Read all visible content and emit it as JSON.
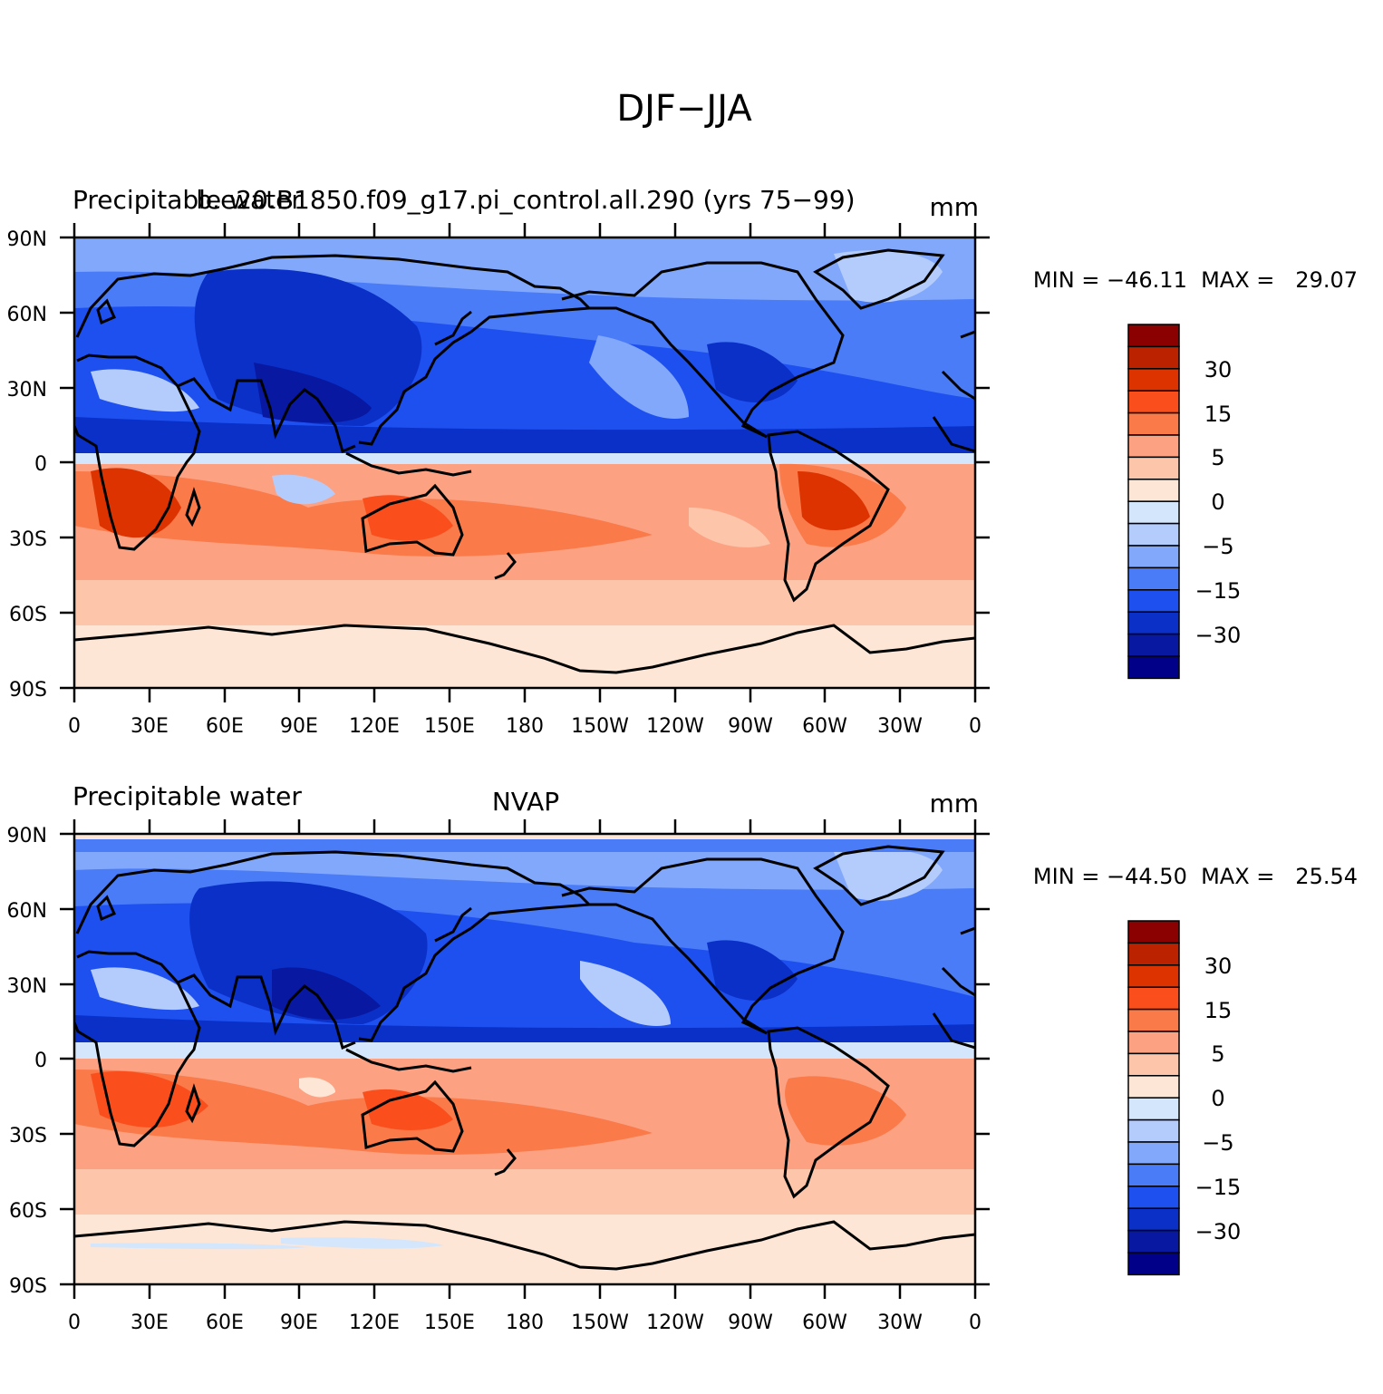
{
  "title": "DJF−JJA",
  "lat_ticks": [
    "90N",
    "60N",
    "30N",
    "0",
    "30S",
    "60S",
    "90S"
  ],
  "lon_ticks": [
    "0",
    "30E",
    "60E",
    "90E",
    "120E",
    "150E",
    "180",
    "150W",
    "120W",
    "90W",
    "60W",
    "30W",
    "0"
  ],
  "colorbar_labels": [
    "30",
    "15",
    "5",
    "0",
    "−5",
    "−15",
    "−30"
  ],
  "colorbar_colors": [
    "#8b0000",
    "#bb2200",
    "#dd3300",
    "#fa4f1c",
    "#fa7a4a",
    "#fca283",
    "#fdc6aa",
    "#fee6d6",
    "#d4e6fc",
    "#b4ccfc",
    "#82a8fc",
    "#4a7cf8",
    "#1e50f0",
    "#0a30c8",
    "#0818a0",
    "#000088"
  ],
  "panels": [
    {
      "left_title": "Precipitable water",
      "center_title": "b.e20.B1850.f09_g17.pi_control.all.290 (yrs 75−99)",
      "units": "mm",
      "min_max": "MIN = −46.11  MAX =   29.07"
    },
    {
      "left_title": "Precipitable water",
      "center_title": "NVAP",
      "units": "mm",
      "min_max": "MIN = −44.50  MAX =   25.54"
    }
  ]
}
